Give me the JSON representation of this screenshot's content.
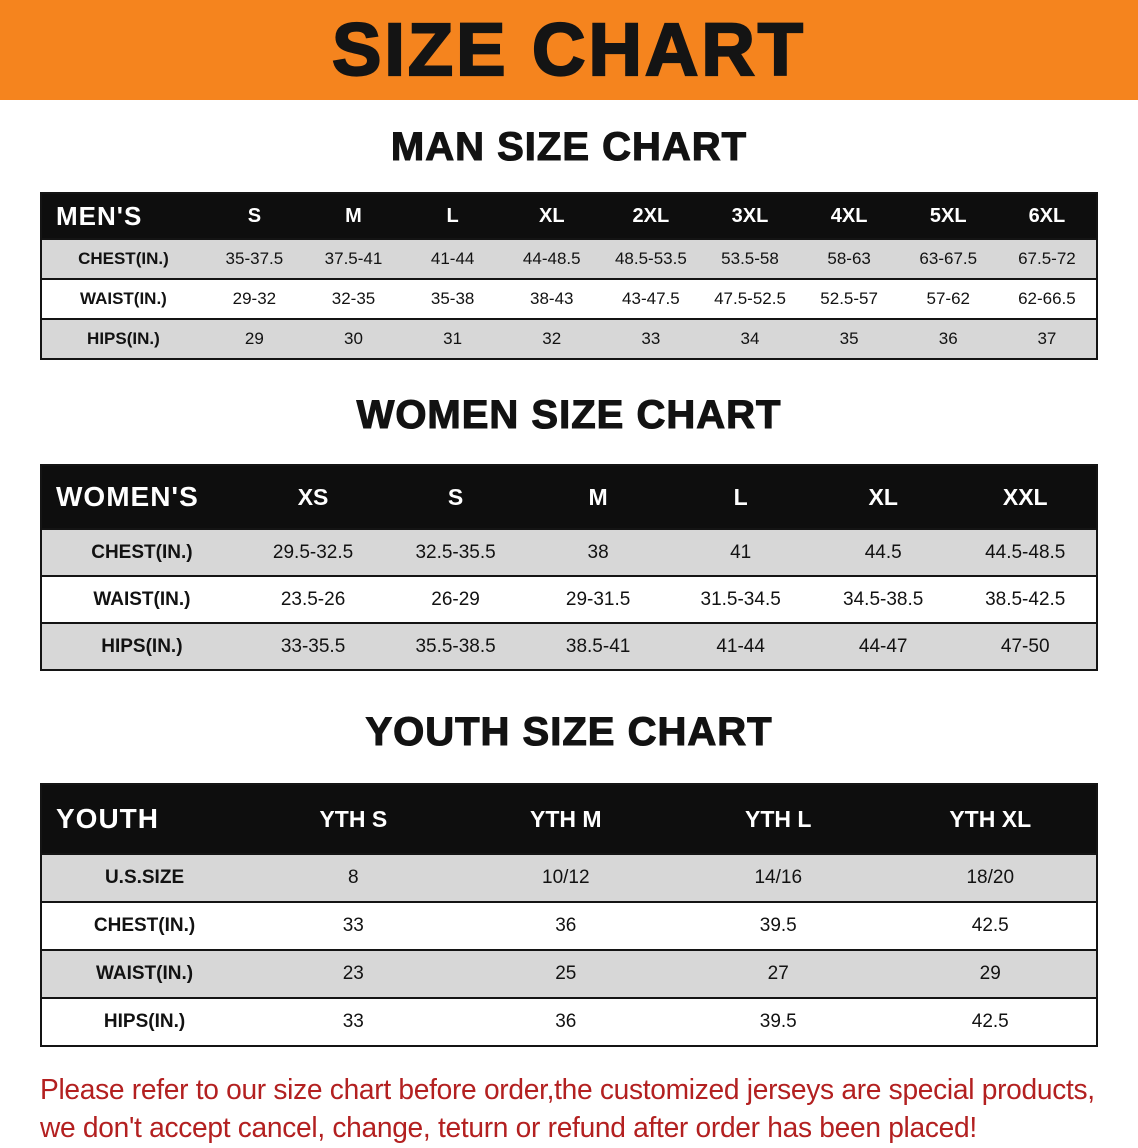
{
  "banner": {
    "title": "SIZE CHART",
    "bg_color": "#F5841E"
  },
  "sections": [
    {
      "id": "men",
      "heading": "MAN SIZE CHART",
      "table": {
        "title": "MEN'S",
        "columns": [
          "S",
          "M",
          "L",
          "XL",
          "2XL",
          "3XL",
          "4XL",
          "5XL",
          "6XL"
        ],
        "rows": [
          {
            "label": "CHEST(IN.)",
            "values": [
              "35-37.5",
              "37.5-41",
              "41-44",
              "44-48.5",
              "48.5-53.5",
              "53.5-58",
              "58-63",
              "63-67.5",
              "67.5-72"
            ]
          },
          {
            "label": "WAIST(IN.)",
            "values": [
              "29-32",
              "32-35",
              "35-38",
              "38-43",
              "43-47.5",
              "47.5-52.5",
              "52.5-57",
              "57-62",
              "62-66.5"
            ]
          },
          {
            "label": "HIPS(IN.)",
            "values": [
              "29",
              "30",
              "31",
              "32",
              "33",
              "34",
              "35",
              "36",
              "37"
            ]
          }
        ]
      }
    },
    {
      "id": "women",
      "heading": "WOMEN SIZE CHART",
      "table": {
        "title": "WOMEN'S",
        "columns": [
          "XS",
          "S",
          "M",
          "L",
          "XL",
          "XXL"
        ],
        "rows": [
          {
            "label": "CHEST(IN.)",
            "values": [
              "29.5-32.5",
              "32.5-35.5",
              "38",
              "41",
              "44.5",
              "44.5-48.5"
            ]
          },
          {
            "label": "WAIST(IN.)",
            "values": [
              "23.5-26",
              "26-29",
              "29-31.5",
              "31.5-34.5",
              "34.5-38.5",
              "38.5-42.5"
            ]
          },
          {
            "label": "HIPS(IN.)",
            "values": [
              "33-35.5",
              "35.5-38.5",
              "38.5-41",
              "41-44",
              "44-47",
              "47-50"
            ]
          }
        ]
      }
    },
    {
      "id": "youth",
      "heading": "YOUTH SIZE CHART",
      "table": {
        "title": "YOUTH",
        "columns": [
          "YTH S",
          "YTH M",
          "YTH L",
          "YTH XL"
        ],
        "rows": [
          {
            "label": "U.S.SIZE",
            "values": [
              "8",
              "10/12",
              "14/16",
              "18/20"
            ]
          },
          {
            "label": "CHEST(IN.)",
            "values": [
              "33",
              "36",
              "39.5",
              "42.5"
            ]
          },
          {
            "label": "WAIST(IN.)",
            "values": [
              "23",
              "25",
              "27",
              "29"
            ]
          },
          {
            "label": "HIPS(IN.)",
            "values": [
              "33",
              "36",
              "39.5",
              "42.5"
            ]
          }
        ]
      }
    }
  ],
  "footer": {
    "text_color": "#b32020",
    "lines": [
      "Please refer to our size chart before order,the customized jerseys are special products,",
      "we don't accept cancel, change, teturn or refund after order has been placed!"
    ]
  }
}
